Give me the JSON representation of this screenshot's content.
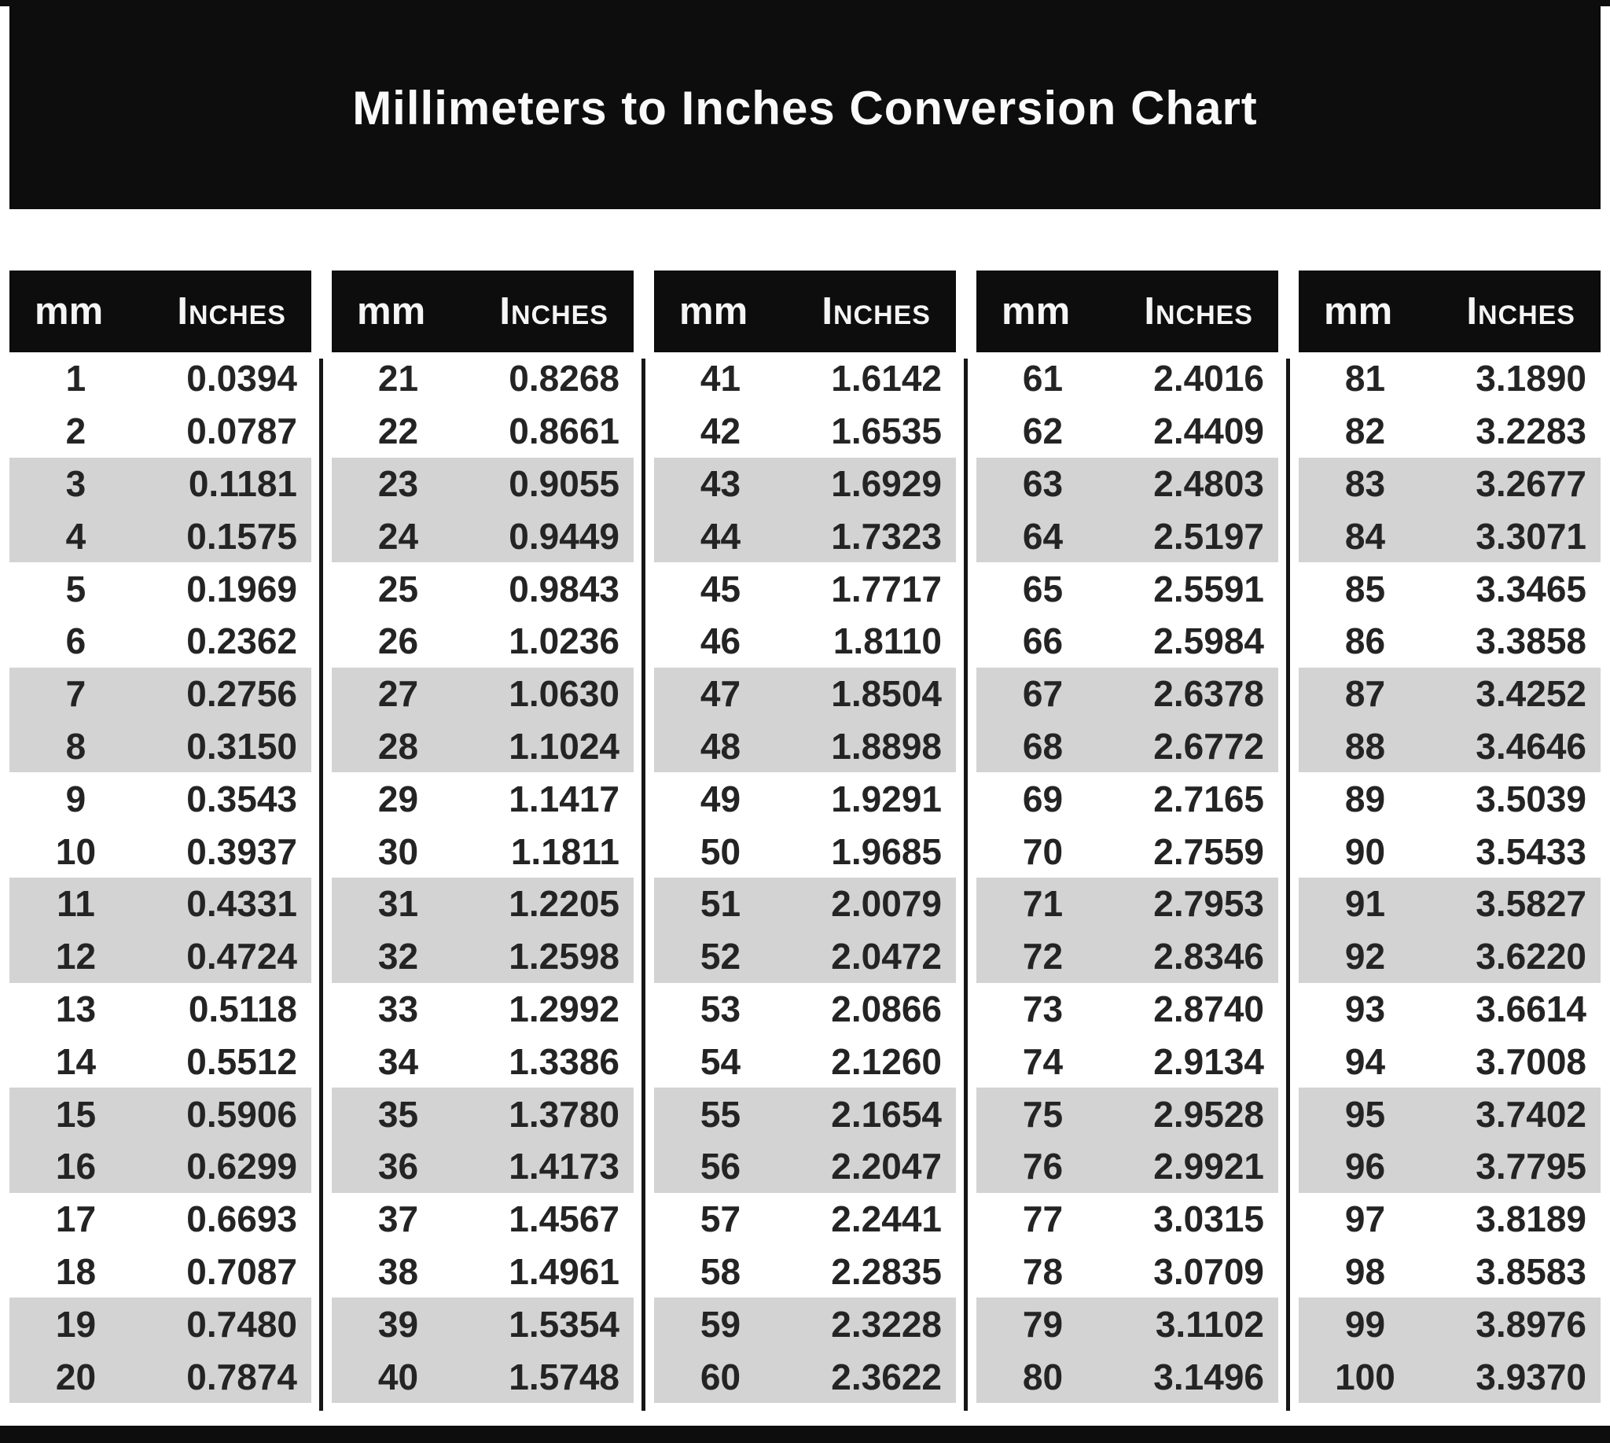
{
  "title": "Millimeters to Inches Conversion Chart",
  "colors": {
    "banner_black": "#0d0d0d",
    "stripe_gray": "#d3d3d3",
    "value_text": "#242424",
    "header_text": "#f5f5f5",
    "background": "#ffffff"
  },
  "table": {
    "columns": [
      {
        "header": {
          "mm": "mm",
          "inches": "Inches"
        },
        "rows": [
          {
            "mm": "1",
            "in": "0.0394"
          },
          {
            "mm": "2",
            "in": "0.0787"
          },
          {
            "mm": "3",
            "in": "0.1181"
          },
          {
            "mm": "4",
            "in": "0.1575"
          },
          {
            "mm": "5",
            "in": "0.1969"
          },
          {
            "mm": "6",
            "in": "0.2362"
          },
          {
            "mm": "7",
            "in": "0.2756"
          },
          {
            "mm": "8",
            "in": "0.3150"
          },
          {
            "mm": "9",
            "in": "0.3543"
          },
          {
            "mm": "10",
            "in": "0.3937"
          },
          {
            "mm": "11",
            "in": "0.4331"
          },
          {
            "mm": "12",
            "in": "0.4724"
          },
          {
            "mm": "13",
            "in": "0.5118"
          },
          {
            "mm": "14",
            "in": "0.5512"
          },
          {
            "mm": "15",
            "in": "0.5906"
          },
          {
            "mm": "16",
            "in": "0.6299"
          },
          {
            "mm": "17",
            "in": "0.6693"
          },
          {
            "mm": "18",
            "in": "0.7087"
          },
          {
            "mm": "19",
            "in": "0.7480"
          },
          {
            "mm": "20",
            "in": "0.7874"
          }
        ]
      },
      {
        "header": {
          "mm": "mm",
          "inches": "Inches"
        },
        "rows": [
          {
            "mm": "21",
            "in": "0.8268"
          },
          {
            "mm": "22",
            "in": "0.8661"
          },
          {
            "mm": "23",
            "in": "0.9055"
          },
          {
            "mm": "24",
            "in": "0.9449"
          },
          {
            "mm": "25",
            "in": "0.9843"
          },
          {
            "mm": "26",
            "in": "1.0236"
          },
          {
            "mm": "27",
            "in": "1.0630"
          },
          {
            "mm": "28",
            "in": "1.1024"
          },
          {
            "mm": "29",
            "in": "1.1417"
          },
          {
            "mm": "30",
            "in": "1.1811"
          },
          {
            "mm": "31",
            "in": "1.2205"
          },
          {
            "mm": "32",
            "in": "1.2598"
          },
          {
            "mm": "33",
            "in": "1.2992"
          },
          {
            "mm": "34",
            "in": "1.3386"
          },
          {
            "mm": "35",
            "in": "1.3780"
          },
          {
            "mm": "36",
            "in": "1.4173"
          },
          {
            "mm": "37",
            "in": "1.4567"
          },
          {
            "mm": "38",
            "in": "1.4961"
          },
          {
            "mm": "39",
            "in": "1.5354"
          },
          {
            "mm": "40",
            "in": "1.5748"
          }
        ]
      },
      {
        "header": {
          "mm": "mm",
          "inches": "Inches"
        },
        "rows": [
          {
            "mm": "41",
            "in": "1.6142"
          },
          {
            "mm": "42",
            "in": "1.6535"
          },
          {
            "mm": "43",
            "in": "1.6929"
          },
          {
            "mm": "44",
            "in": "1.7323"
          },
          {
            "mm": "45",
            "in": "1.7717"
          },
          {
            "mm": "46",
            "in": "1.8110"
          },
          {
            "mm": "47",
            "in": "1.8504"
          },
          {
            "mm": "48",
            "in": "1.8898"
          },
          {
            "mm": "49",
            "in": "1.9291"
          },
          {
            "mm": "50",
            "in": "1.9685"
          },
          {
            "mm": "51",
            "in": "2.0079"
          },
          {
            "mm": "52",
            "in": "2.0472"
          },
          {
            "mm": "53",
            "in": "2.0866"
          },
          {
            "mm": "54",
            "in": "2.1260"
          },
          {
            "mm": "55",
            "in": "2.1654"
          },
          {
            "mm": "56",
            "in": "2.2047"
          },
          {
            "mm": "57",
            "in": "2.2441"
          },
          {
            "mm": "58",
            "in": "2.2835"
          },
          {
            "mm": "59",
            "in": "2.3228"
          },
          {
            "mm": "60",
            "in": "2.3622"
          }
        ]
      },
      {
        "header": {
          "mm": "mm",
          "inches": "Inches"
        },
        "rows": [
          {
            "mm": "61",
            "in": "2.4016"
          },
          {
            "mm": "62",
            "in": "2.4409"
          },
          {
            "mm": "63",
            "in": "2.4803"
          },
          {
            "mm": "64",
            "in": "2.5197"
          },
          {
            "mm": "65",
            "in": "2.5591"
          },
          {
            "mm": "66",
            "in": "2.5984"
          },
          {
            "mm": "67",
            "in": "2.6378"
          },
          {
            "mm": "68",
            "in": "2.6772"
          },
          {
            "mm": "69",
            "in": "2.7165"
          },
          {
            "mm": "70",
            "in": "2.7559"
          },
          {
            "mm": "71",
            "in": "2.7953"
          },
          {
            "mm": "72",
            "in": "2.8346"
          },
          {
            "mm": "73",
            "in": "2.8740"
          },
          {
            "mm": "74",
            "in": "2.9134"
          },
          {
            "mm": "75",
            "in": "2.9528"
          },
          {
            "mm": "76",
            "in": "2.9921"
          },
          {
            "mm": "77",
            "in": "3.0315"
          },
          {
            "mm": "78",
            "in": "3.0709"
          },
          {
            "mm": "79",
            "in": "3.1102"
          },
          {
            "mm": "80",
            "in": "3.1496"
          }
        ]
      },
      {
        "header": {
          "mm": "mm",
          "inches": "Inches"
        },
        "rows": [
          {
            "mm": "81",
            "in": "3.1890"
          },
          {
            "mm": "82",
            "in": "3.2283"
          },
          {
            "mm": "83",
            "in": "3.2677"
          },
          {
            "mm": "84",
            "in": "3.3071"
          },
          {
            "mm": "85",
            "in": "3.3465"
          },
          {
            "mm": "86",
            "in": "3.3858"
          },
          {
            "mm": "87",
            "in": "3.4252"
          },
          {
            "mm": "88",
            "in": "3.4646"
          },
          {
            "mm": "89",
            "in": "3.5039"
          },
          {
            "mm": "90",
            "in": "3.5433"
          },
          {
            "mm": "91",
            "in": "3.5827"
          },
          {
            "mm": "92",
            "in": "3.6220"
          },
          {
            "mm": "93",
            "in": "3.6614"
          },
          {
            "mm": "94",
            "in": "3.7008"
          },
          {
            "mm": "95",
            "in": "3.7402"
          },
          {
            "mm": "96",
            "in": "3.7795"
          },
          {
            "mm": "97",
            "in": "3.8189"
          },
          {
            "mm": "98",
            "in": "3.8583"
          },
          {
            "mm": "99",
            "in": "3.8976"
          },
          {
            "mm": "100",
            "in": "3.9370"
          }
        ]
      }
    ]
  }
}
